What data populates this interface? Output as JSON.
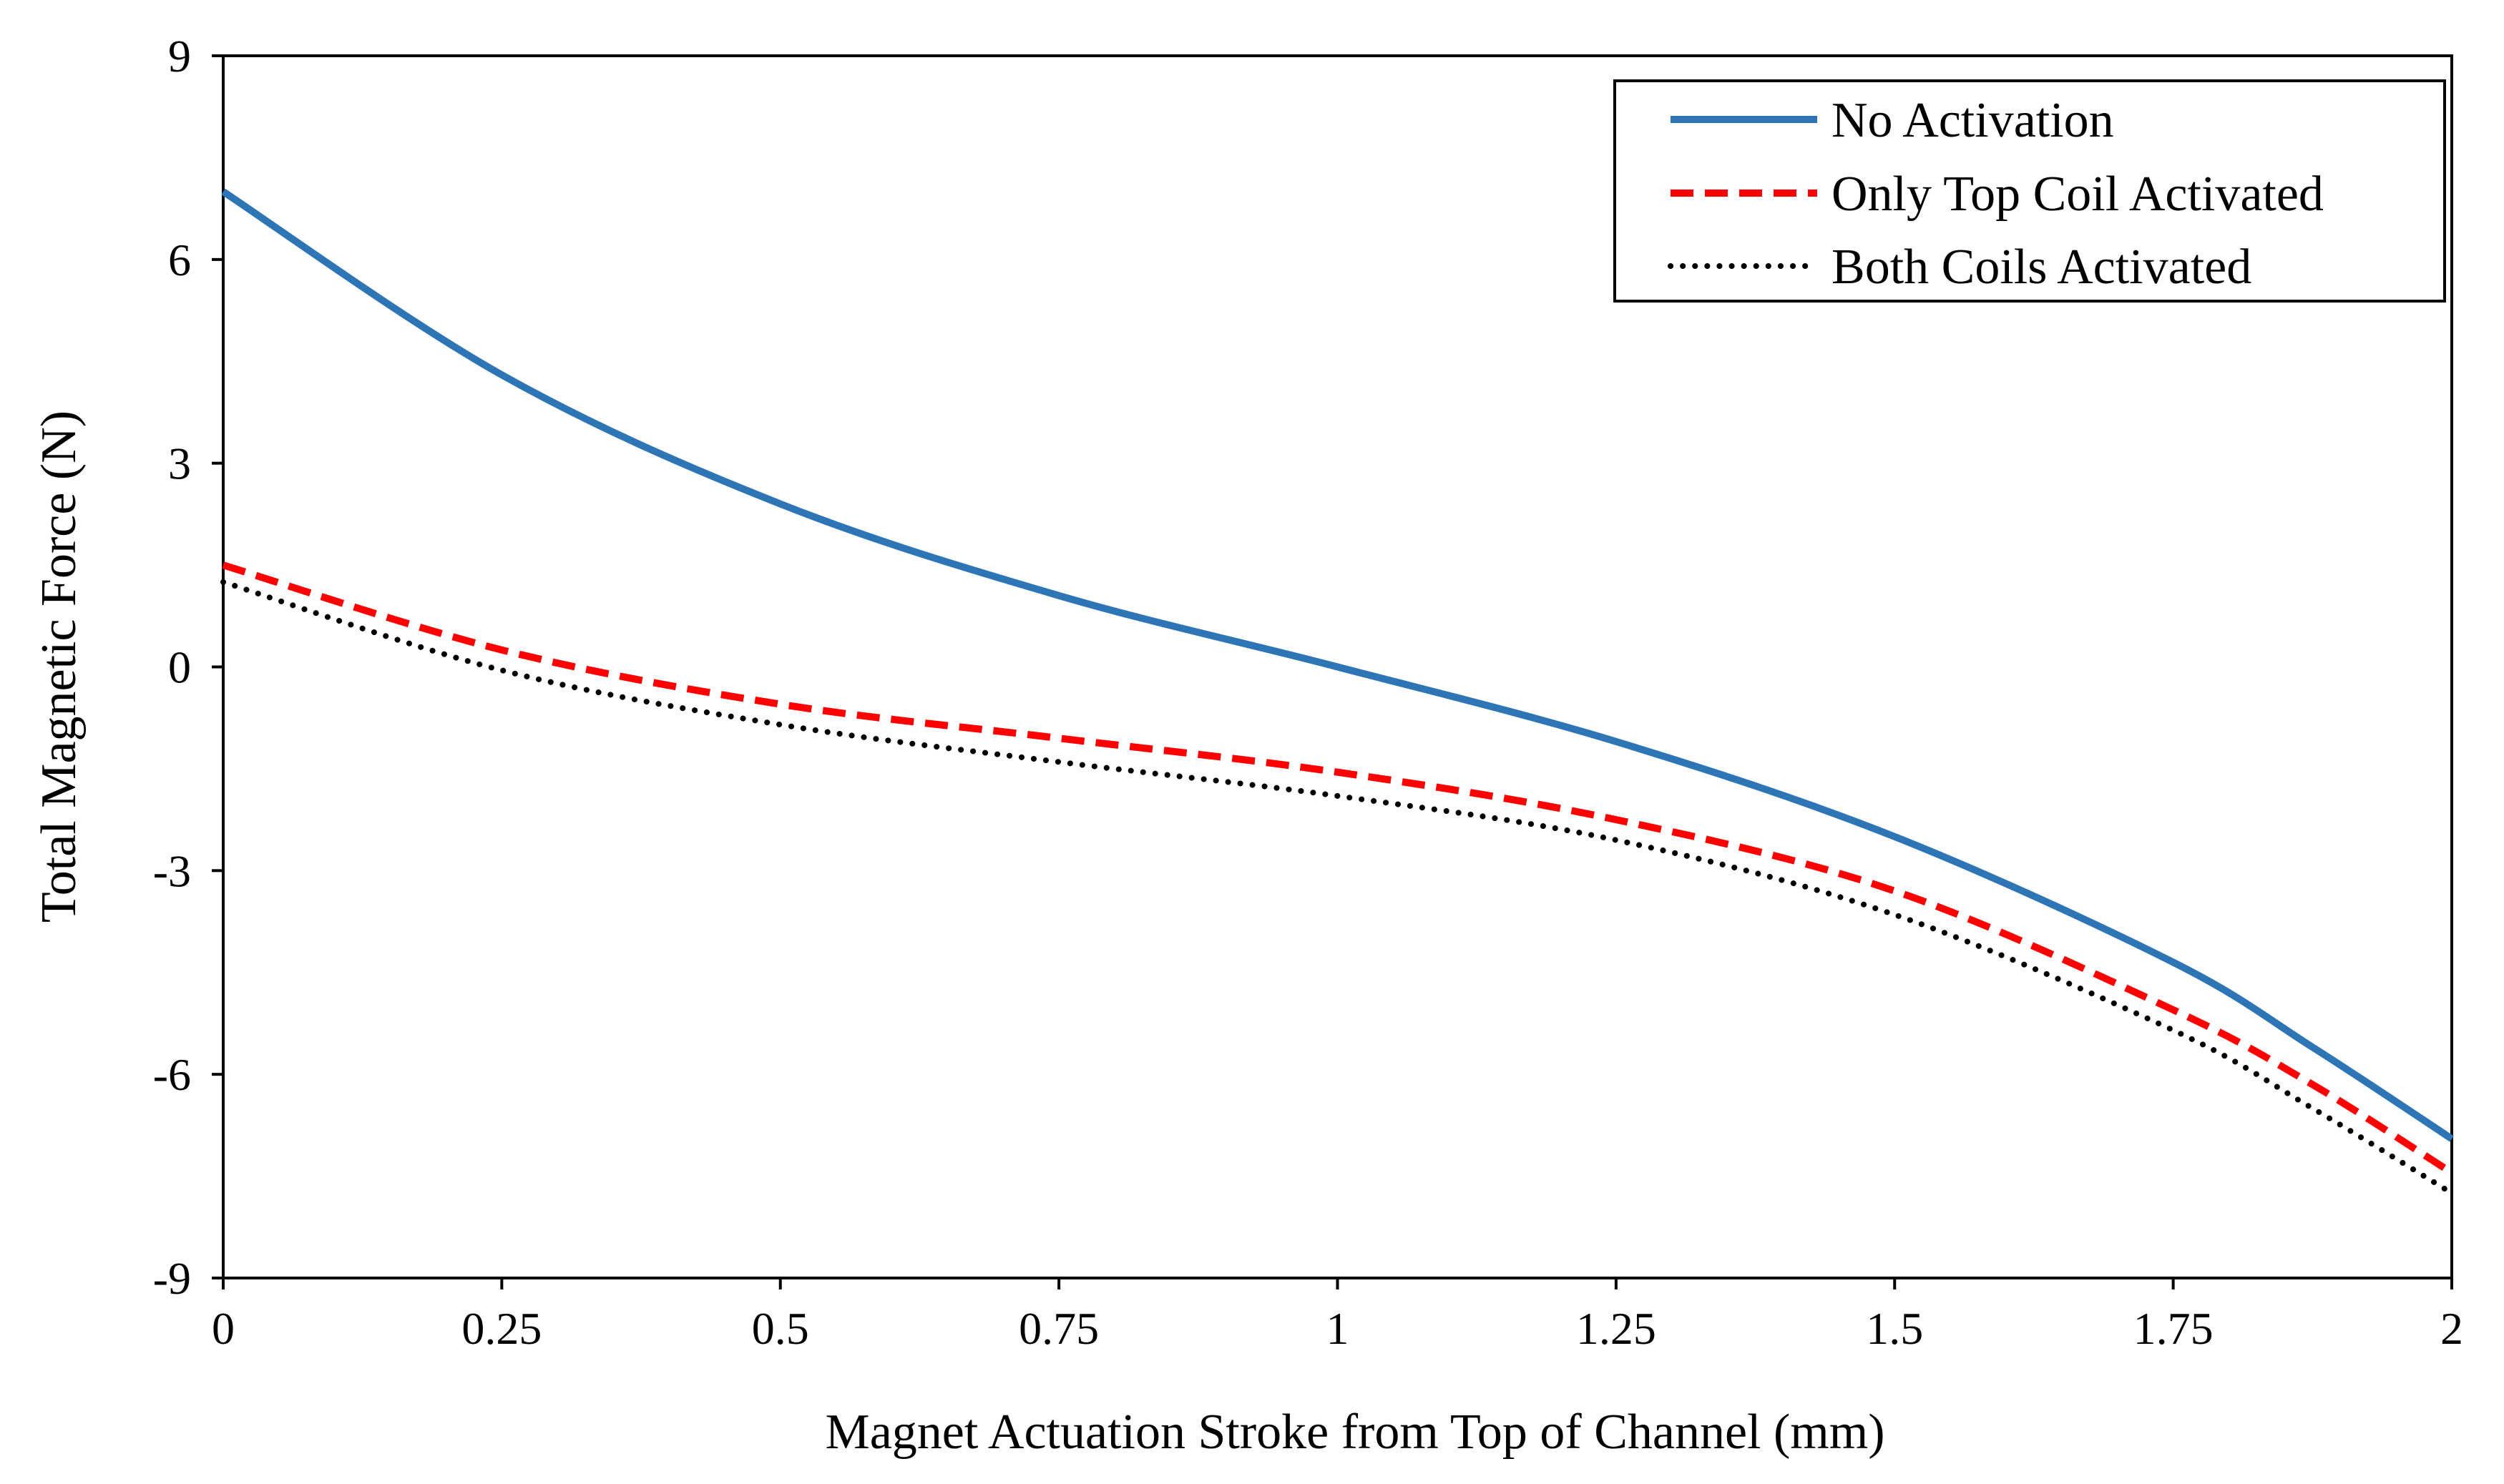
{
  "chart_data": {
    "type": "line",
    "title": "",
    "xlabel": "Magnet Actuation Stroke from Top of  Channel (mm)",
    "ylabel": "Total Magnetic Force (N)",
    "xlim": [
      0,
      2
    ],
    "ylim": [
      -9,
      9
    ],
    "x_ticks": [
      0,
      0.25,
      0.5,
      0.75,
      1,
      1.25,
      1.5,
      1.75,
      2
    ],
    "x_tick_labels": [
      "0",
      "0.25",
      "0.5",
      "0.75",
      "1",
      "1.25",
      "1.5",
      "1.75",
      "2"
    ],
    "y_ticks": [
      9,
      6,
      3,
      0,
      -3,
      -6,
      -9
    ],
    "y_tick_labels": [
      "9",
      "6",
      "3",
      "0",
      "-3",
      "-6",
      "-9"
    ],
    "grid": false,
    "legend_position": "top-right",
    "x": [
      0,
      0.25,
      0.5,
      0.75,
      1,
      1.25,
      1.5,
      1.75,
      1.875,
      2
    ],
    "series": [
      {
        "name": "No Activation",
        "color": "#2e75b6",
        "style": "solid",
        "values": [
          7.0,
          4.3,
          2.4,
          1.05,
          0.0,
          -1.1,
          -2.5,
          -4.35,
          -5.6,
          -6.95
        ]
      },
      {
        "name": "Only Top Coil Activated",
        "color": "#ff0000",
        "style": "dashed",
        "values": [
          1.5,
          0.25,
          -0.55,
          -1.05,
          -1.55,
          -2.25,
          -3.3,
          -5.05,
          -6.15,
          -7.45
        ]
      },
      {
        "name": "Both Coils Activated",
        "color": "#000000",
        "style": "dotted",
        "values": [
          1.25,
          -0.05,
          -0.85,
          -1.4,
          -1.9,
          -2.55,
          -3.65,
          -5.35,
          -6.5,
          -7.75
        ]
      }
    ]
  }
}
